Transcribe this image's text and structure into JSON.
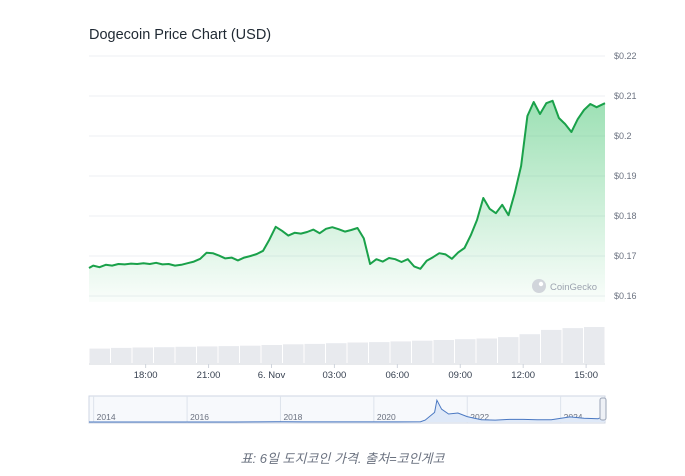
{
  "chart_data": {
    "type": "area",
    "title": "Dogecoin Price Chart (USD)",
    "y_ticks": [
      "$0.22",
      "$0.21",
      "$0.2",
      "$0.19",
      "$0.18",
      "$0.17",
      "$0.16"
    ],
    "y_tick_values": [
      0.22,
      0.21,
      0.2,
      0.19,
      0.18,
      0.17,
      0.16
    ],
    "ylim": [
      0.1585,
      0.2215
    ],
    "x_ticks": [
      "18:00",
      "21:00",
      "6. Nov",
      "03:00",
      "06:00",
      "09:00",
      "12:00",
      "15:00"
    ],
    "x_tick_hours": [
      18,
      21,
      24,
      27,
      30,
      33,
      36,
      39
    ],
    "xlim_hours": [
      15.3,
      39.9
    ],
    "series": [
      {
        "x_hours": [
          15.3,
          15.5,
          15.8,
          16.1,
          16.4,
          16.7,
          17.0,
          17.3,
          17.6,
          17.9,
          18.2,
          18.5,
          18.8,
          19.1,
          19.4,
          19.7,
          20.0,
          20.3,
          20.6,
          20.9,
          21.2,
          21.5,
          21.8,
          22.1,
          22.4,
          22.7,
          23.0,
          23.3,
          23.6,
          23.9,
          24.2,
          24.5,
          24.8,
          25.1,
          25.4,
          25.7,
          26.0,
          26.3,
          26.6,
          26.9,
          27.2,
          27.5,
          27.8,
          28.1,
          28.4,
          28.7,
          29.0,
          29.3,
          29.6,
          29.9,
          30.2,
          30.5,
          30.8,
          31.1,
          31.4,
          31.7,
          32.0,
          32.3,
          32.6,
          32.9,
          33.2,
          33.5,
          33.8,
          34.1,
          34.4,
          34.7,
          35.0,
          35.3,
          35.6,
          35.9,
          36.2,
          36.5,
          36.8,
          37.1,
          37.4,
          37.7,
          38.0,
          38.3,
          38.6,
          38.9,
          39.2,
          39.5,
          39.9
        ],
        "price_usd": [
          0.167,
          0.1676,
          0.1672,
          0.1678,
          0.1676,
          0.168,
          0.1679,
          0.1681,
          0.168,
          0.1682,
          0.168,
          0.1683,
          0.1679,
          0.168,
          0.1676,
          0.1678,
          0.1682,
          0.1686,
          0.1693,
          0.1708,
          0.1707,
          0.1701,
          0.1694,
          0.1696,
          0.1689,
          0.1696,
          0.17,
          0.1705,
          0.1713,
          0.1741,
          0.1773,
          0.1763,
          0.1751,
          0.1758,
          0.1756,
          0.176,
          0.1766,
          0.1757,
          0.1768,
          0.1772,
          0.1767,
          0.1761,
          0.1765,
          0.177,
          0.1744,
          0.168,
          0.1692,
          0.1686,
          0.1695,
          0.1692,
          0.1685,
          0.1692,
          0.1674,
          0.1668,
          0.1688,
          0.1697,
          0.1707,
          0.1704,
          0.1693,
          0.1709,
          0.172,
          0.1752,
          0.179,
          0.1845,
          0.1818,
          0.1807,
          0.1828,
          0.1802,
          0.1858,
          0.1925,
          0.205,
          0.2085,
          0.2055,
          0.2082,
          0.2088,
          0.2045,
          0.203,
          0.201,
          0.2042,
          0.2065,
          0.208,
          0.2072,
          0.2082
        ]
      }
    ],
    "volume_relative": [
      0.4,
      0.42,
      0.43,
      0.44,
      0.45,
      0.46,
      0.47,
      0.48,
      0.5,
      0.52,
      0.53,
      0.55,
      0.57,
      0.58,
      0.6,
      0.62,
      0.64,
      0.66,
      0.68,
      0.72,
      0.8,
      0.92,
      0.97,
      1.0
    ],
    "navigator": {
      "x_ticks": [
        "2014",
        "2016",
        "2018",
        "2020",
        "2022",
        "2024"
      ],
      "x_tick_years": [
        2014,
        2016,
        2018,
        2020,
        2022,
        2024
      ],
      "xlim_years": [
        2013.9,
        2024.95
      ],
      "years": [
        2013.9,
        2014.5,
        2015.0,
        2015.5,
        2016.0,
        2016.5,
        2017.0,
        2017.5,
        2017.9,
        2018.1,
        2018.5,
        2019.0,
        2019.5,
        2020.0,
        2020.5,
        2021.0,
        2021.1,
        2021.3,
        2021.35,
        2021.45,
        2021.6,
        2021.8,
        2022.0,
        2022.3,
        2022.6,
        2022.9,
        2023.2,
        2023.5,
        2023.8,
        2024.2,
        2024.5,
        2024.8,
        2024.95
      ],
      "price_usd": [
        0.0005,
        0.0003,
        0.0002,
        0.0002,
        0.0003,
        0.0003,
        0.0004,
        0.003,
        0.01,
        0.008,
        0.003,
        0.002,
        0.003,
        0.002,
        0.003,
        0.01,
        0.06,
        0.3,
        0.68,
        0.4,
        0.25,
        0.28,
        0.17,
        0.07,
        0.06,
        0.08,
        0.08,
        0.07,
        0.07,
        0.16,
        0.12,
        0.1,
        0.21
      ],
      "ymax": 0.75
    },
    "watermark": "CoinGecko",
    "line_color": "#1aa14a",
    "fill_color": "#8fdba6",
    "nav_line_color": "#4a78c2"
  },
  "caption": "표: 6일 도지코인 가격. 출처=코인게코"
}
